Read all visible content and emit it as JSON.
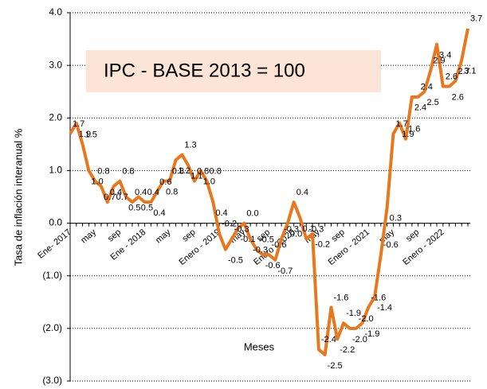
{
  "chart_data": {
    "type": "line",
    "title": "IPC - BASE 2013 = 100",
    "x_label": "Meses",
    "y_label": "Tasa de inflación interanual %",
    "categories": [
      "Ene- 2017",
      null,
      null,
      null,
      "may",
      null,
      null,
      null,
      "sep",
      null,
      null,
      null,
      "Ene - 2018",
      null,
      null,
      null,
      "may",
      null,
      null,
      null,
      "sep",
      null,
      null,
      null,
      "Enero - 2019",
      null,
      null,
      null,
      "may",
      null,
      null,
      null,
      "sep",
      null,
      null,
      null,
      "Enero - 2020",
      null,
      null,
      null,
      "may",
      null,
      null,
      null,
      "sep",
      null,
      null,
      null,
      "Enero - 2021",
      null,
      null,
      null,
      "may",
      null,
      null,
      null,
      "sep",
      null,
      null,
      null,
      "Enero - 2022",
      null,
      null,
      null,
      null
    ],
    "series": [
      {
        "name": "IPC",
        "color": "#e8781e",
        "values": [
          1.7,
          1.9,
          1.5,
          1.0,
          0.8,
          0.7,
          0.4,
          0.7,
          0.8,
          0.5,
          0.4,
          0.5,
          0.4,
          0.4,
          0.6,
          0.8,
          0.8,
          1.2,
          1.3,
          1.1,
          0.8,
          1.0,
          0.8,
          0.4,
          -0.2,
          -0.5,
          -0.3,
          -0.1,
          0.0,
          -0.3,
          -0.5,
          -0.6,
          -0.6,
          -0.7,
          -0.3,
          0.0,
          0.4,
          0.1,
          -0.3,
          -0.2,
          -2.4,
          -2.5,
          -1.6,
          -2.2,
          -1.9,
          -2.0,
          -2.0,
          -1.9,
          -1.6,
          -1.4,
          -0.6,
          0.3,
          1.7,
          1.9,
          1.6,
          2.4,
          2.4,
          2.5,
          2.9,
          3.4,
          2.6,
          2.6,
          2.7,
          3.1,
          3.7
        ],
        "value_labels": [
          "1.7",
          "1.9",
          "1.5",
          "1.0",
          "0.8",
          "0.7",
          "0.4",
          "0.7",
          "0.8",
          "0.5",
          "0.4",
          "0.5",
          "0.4",
          "0.4",
          "0.6",
          "0.8",
          "0.8",
          "1.2",
          "1.3",
          "1.1",
          "0.8",
          "1.0",
          "0.8",
          "0.4",
          "-0.2",
          "-0.5",
          "-0.3",
          "-0.1",
          "0.0",
          "-0.3",
          "-0.5",
          "-0.6",
          "-0.6",
          "-0.7",
          "-0.3",
          "0.0",
          "0.4",
          "0.1",
          "-0.3",
          "-0.2",
          "-2.4",
          "-2.5",
          "-1.6",
          "-2.2",
          "-1.9",
          "-2.0",
          "-2.0",
          "-1.9",
          "-1.6",
          "-1.4",
          "-0.6",
          "0.3",
          "1.7",
          "1.9",
          "1.6",
          "2.4",
          "2.4",
          "2.5",
          "2.9",
          "3.4",
          "2.6",
          "2.6",
          "2.7",
          "3.1",
          "3.7"
        ]
      }
    ],
    "ylim": [
      -3.0,
      4.0
    ],
    "yticks": [
      {
        "value": -3.0,
        "label": "(3.0)"
      },
      {
        "value": -2.0,
        "label": "(2.0)"
      },
      {
        "value": -1.0,
        "label": "(1.0)"
      },
      {
        "value": 0.0,
        "label": "0.0"
      },
      {
        "value": 1.0,
        "label": "1.0"
      },
      {
        "value": 2.0,
        "label": "2.0"
      },
      {
        "value": 3.0,
        "label": "3.0"
      },
      {
        "value": 4.0,
        "label": "4.0"
      }
    ],
    "grid": true,
    "negative_tick_color": "#e00000",
    "title_box_color": "#fce4d6"
  }
}
